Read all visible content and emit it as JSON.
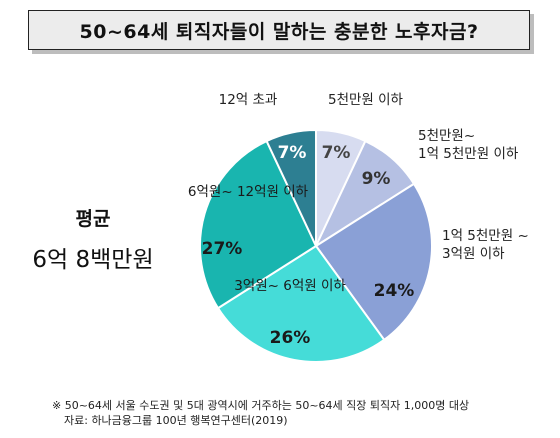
{
  "title": "50~64세 퇴직자들이 말하는 충분한 노후자금?",
  "average": {
    "label": "평균",
    "value": "6억 8백만원"
  },
  "chart_data": {
    "type": "pie",
    "title": "50~64세 퇴직자들이 말하는 충분한 노후자금?",
    "slices": [
      {
        "label": "5천만원 이하",
        "value": 7,
        "display": "7%",
        "color": "#d7dcf0"
      },
      {
        "label": "5천만원~ 1억 5천만원 이하",
        "value": 9,
        "display": "9%",
        "color": "#b5c0e3"
      },
      {
        "label": "1억 5천만원 ~ 3억원 이하",
        "value": 24,
        "display": "24%",
        "color": "#8aa0d6"
      },
      {
        "label": "3억원~ 6억원 이하",
        "value": 26,
        "display": "26%",
        "color": "#45dcd8"
      },
      {
        "label": "6억원~ 12억원 이하",
        "value": 27,
        "display": "27%",
        "color": "#19b5af"
      },
      {
        "label": "12억 초과",
        "value": 7,
        "display": "7%",
        "color": "#2d7f92"
      }
    ]
  },
  "footnote": {
    "line1": "※ 50~64세 서울 수도권 및 5대 광역시에 거주하는 50~64세 직장 퇴직자 1,000명 대상",
    "line2": "자료: 하나금융그룹 100년 행복연구센터(2019)"
  }
}
